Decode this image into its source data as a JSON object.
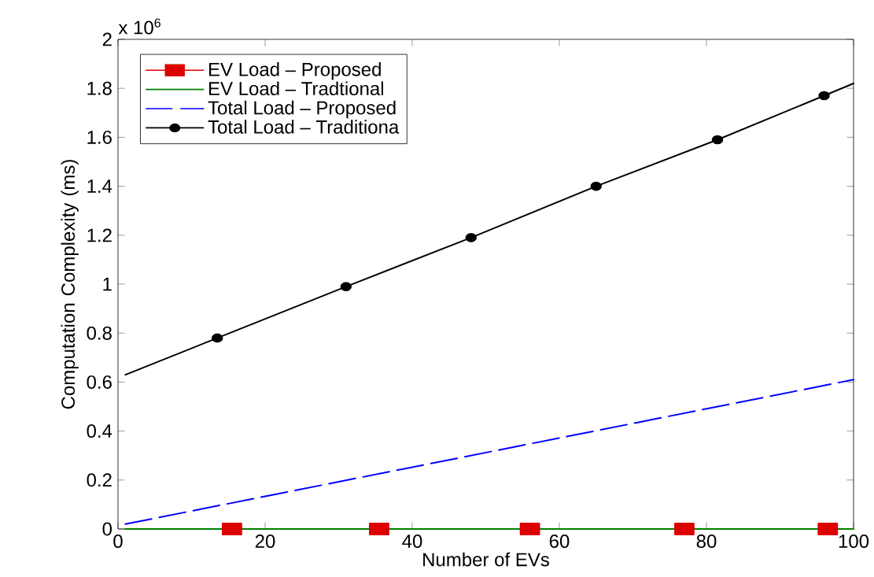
{
  "chart_data": {
    "type": "line",
    "xlabel": "Number of EVs",
    "ylabel": "Computation Complexity (ms)",
    "annotations": [
      "x 10$^{6}$"
    ],
    "xlim": [
      0,
      100
    ],
    "xticks": [
      0,
      20,
      40,
      60,
      80,
      100
    ],
    "ylim": [
      0,
      2
    ],
    "yticks": [
      0,
      0.2,
      0.4,
      0.6,
      0.8,
      1,
      1.2,
      1.4,
      1.6,
      1.8,
      2
    ],
    "legend": "top left",
    "grid": false,
    "series": [
      {
        "name": "EV Load – Proposed",
        "type": "scatter",
        "color": "#dd0000",
        "marker": "square",
        "line_style": "solid",
        "x": [
          15.5,
          35.5,
          56,
          77,
          96.5
        ],
        "values": [
          0,
          0,
          0,
          0,
          0
        ]
      },
      {
        "name": "EV Load – Tradtional",
        "color": "#008000",
        "marker": "none",
        "line_style": "solid",
        "x": [
          1,
          100
        ],
        "values": [
          0,
          0
        ]
      },
      {
        "name": "Total Load – Proposed",
        "color": "#0000ff",
        "marker": "none",
        "line_style": "dashed",
        "x": [
          1,
          100
        ],
        "values": [
          0.02,
          0.61
        ]
      },
      {
        "name": "Total Load – Traditiona",
        "color": "#000000",
        "marker": "circle",
        "line_style": "solid",
        "x": [
          1,
          13.5,
          31,
          48,
          65,
          81.5,
          96,
          100
        ],
        "values": [
          0.63,
          0.78,
          0.99,
          1.19,
          1.4,
          1.59,
          1.77,
          1.82
        ]
      }
    ]
  }
}
